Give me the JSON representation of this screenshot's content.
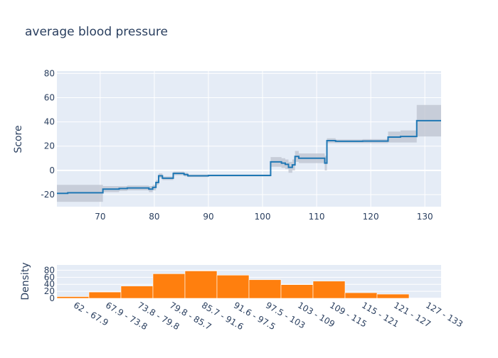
{
  "title": "average blood pressure",
  "chart_data": [
    {
      "type": "line",
      "ylabel": "Score",
      "xlim": [
        62,
        133
      ],
      "ylim": [
        -30,
        82
      ],
      "x_ticks": [
        70,
        80,
        90,
        100,
        110,
        120,
        130
      ],
      "y_ticks": [
        -20,
        0,
        20,
        40,
        60,
        80
      ],
      "grid": true,
      "legend": "none",
      "colors": {
        "line": "#1f77b4",
        "band": "#bcc3cf",
        "bg": "#e5ecf6"
      },
      "steps": [
        {
          "x": 62.0,
          "y": -19.0,
          "lo": -26.0,
          "hi": -12.0
        },
        {
          "x": 64.0,
          "y": -18.5,
          "lo": -26.0,
          "hi": -12.0
        },
        {
          "x": 70.5,
          "y": -15.5,
          "lo": -18.0,
          "hi": -13.0
        },
        {
          "x": 73.5,
          "y": -15.0,
          "lo": -17.0,
          "hi": -13.0
        },
        {
          "x": 75.0,
          "y": -14.5,
          "lo": -16.5,
          "hi": -12.5
        },
        {
          "x": 79.0,
          "y": -15.5,
          "lo": -18.0,
          "hi": -13.0
        },
        {
          "x": 79.7,
          "y": -14.0,
          "lo": -16.5,
          "hi": -12.0
        },
        {
          "x": 80.3,
          "y": -10.0,
          "lo": -12.0,
          "hi": -8.0
        },
        {
          "x": 80.8,
          "y": -4.5,
          "lo": -6.5,
          "hi": -2.5
        },
        {
          "x": 81.5,
          "y": -6.5,
          "lo": -8.0,
          "hi": -5.0
        },
        {
          "x": 83.5,
          "y": -2.5,
          "lo": -4.0,
          "hi": -1.0
        },
        {
          "x": 85.5,
          "y": -3.5,
          "lo": -5.0,
          "hi": -2.0
        },
        {
          "x": 86.2,
          "y": -4.5,
          "lo": -5.5,
          "hi": -3.5
        },
        {
          "x": 90.0,
          "y": -4.2,
          "lo": -5.0,
          "hi": -3.5
        },
        {
          "x": 101.5,
          "y": 7.0,
          "lo": 3.0,
          "hi": 11.0
        },
        {
          "x": 103.5,
          "y": 6.0,
          "lo": 2.0,
          "hi": 10.0
        },
        {
          "x": 104.2,
          "y": 5.0,
          "lo": 1.0,
          "hi": 9.0
        },
        {
          "x": 104.8,
          "y": 2.5,
          "lo": -2.0,
          "hi": 7.0
        },
        {
          "x": 105.5,
          "y": 4.5,
          "lo": 0.0,
          "hi": 9.0
        },
        {
          "x": 106.0,
          "y": 11.5,
          "lo": 7.0,
          "hi": 16.0
        },
        {
          "x": 106.7,
          "y": 10.0,
          "lo": 6.0,
          "hi": 14.0
        },
        {
          "x": 111.5,
          "y": 6.0,
          "lo": 0.0,
          "hi": 12.0
        },
        {
          "x": 111.9,
          "y": 24.5,
          "lo": 22.5,
          "hi": 26.5
        },
        {
          "x": 113.5,
          "y": 24.0,
          "lo": 22.5,
          "hi": 25.5
        },
        {
          "x": 118.5,
          "y": 24.2,
          "lo": 22.5,
          "hi": 25.8
        },
        {
          "x": 123.2,
          "y": 27.5,
          "lo": 23.0,
          "hi": 32.0
        },
        {
          "x": 125.5,
          "y": 28.0,
          "lo": 23.0,
          "hi": 33.0
        },
        {
          "x": 128.5,
          "y": 41.0,
          "lo": 28.0,
          "hi": 54.0
        },
        {
          "x": 133.0,
          "y": 41.0,
          "lo": 28.0,
          "hi": 54.0
        }
      ]
    },
    {
      "type": "bar",
      "ylabel": "Density",
      "ylim": [
        0,
        95
      ],
      "y_ticks": [
        0,
        20,
        40,
        60,
        80
      ],
      "grid": true,
      "legend": "none",
      "colors": {
        "bar": "#ff7f0e",
        "bg": "#e5ecf6"
      },
      "categories": [
        "62 - 67.9",
        "67.9 - 73.8",
        "73.8 - 79.8",
        "79.8 - 85.7",
        "85.7 - 91.6",
        "91.6 - 97.5",
        "97.5 - 103",
        "103 - 109",
        "109 - 115",
        "115 - 121",
        "121 - 127",
        "127 - 133"
      ],
      "values": [
        5,
        18,
        35,
        70,
        78,
        66,
        53,
        39,
        49,
        16,
        12,
        1
      ]
    }
  ]
}
